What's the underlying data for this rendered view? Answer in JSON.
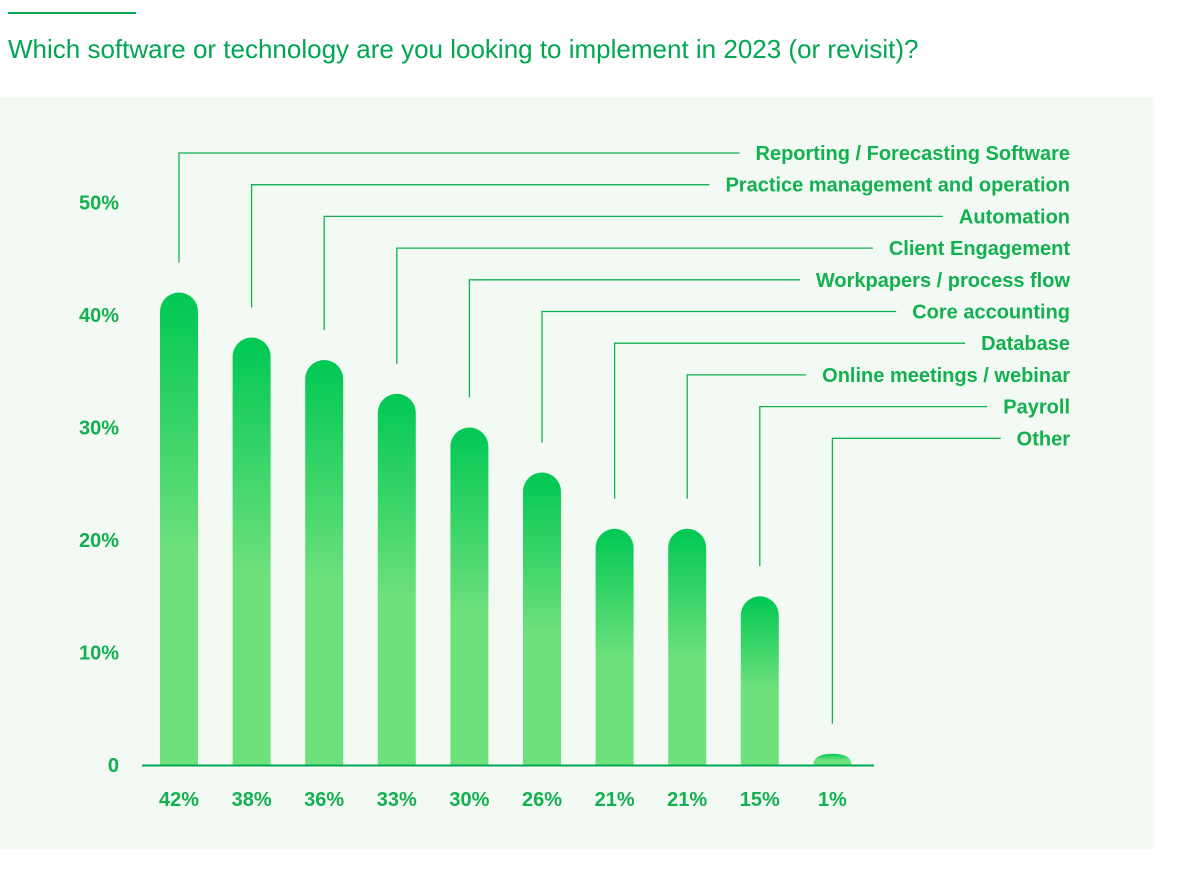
{
  "title": "Which software or technology are you looking to implement in 2023 (or revisit)?",
  "colors": {
    "accent": "#00a651",
    "bar_top": "#00c853",
    "bar_bottom": "#6ee07c",
    "label": "#12b04e",
    "panel_bg": "#f3faf4"
  },
  "chart_data": {
    "type": "bar",
    "title": "Which software or technology are you looking to implement in 2023 (or revisit)?",
    "categories": [
      "Reporting / Forecasting Software",
      "Practice management and operation",
      "Automation",
      "Client Engagement",
      "Workpapers / process flow",
      "Core accounting",
      "Database",
      "Online meetings / webinar",
      "Payroll",
      "Other"
    ],
    "values": [
      42,
      38,
      36,
      33,
      30,
      26,
      21,
      21,
      15,
      1
    ],
    "value_labels": [
      "42%",
      "38%",
      "36%",
      "33%",
      "30%",
      "26%",
      "21%",
      "21%",
      "15%",
      "1%"
    ],
    "yticks": [
      0,
      10,
      20,
      30,
      40,
      50
    ],
    "ytick_labels": [
      "0",
      "10%",
      "20%",
      "30%",
      "40%",
      "50%"
    ],
    "ylim": [
      0,
      50
    ],
    "xlabel": "",
    "ylabel": "",
    "legend": "none",
    "grid": false
  }
}
